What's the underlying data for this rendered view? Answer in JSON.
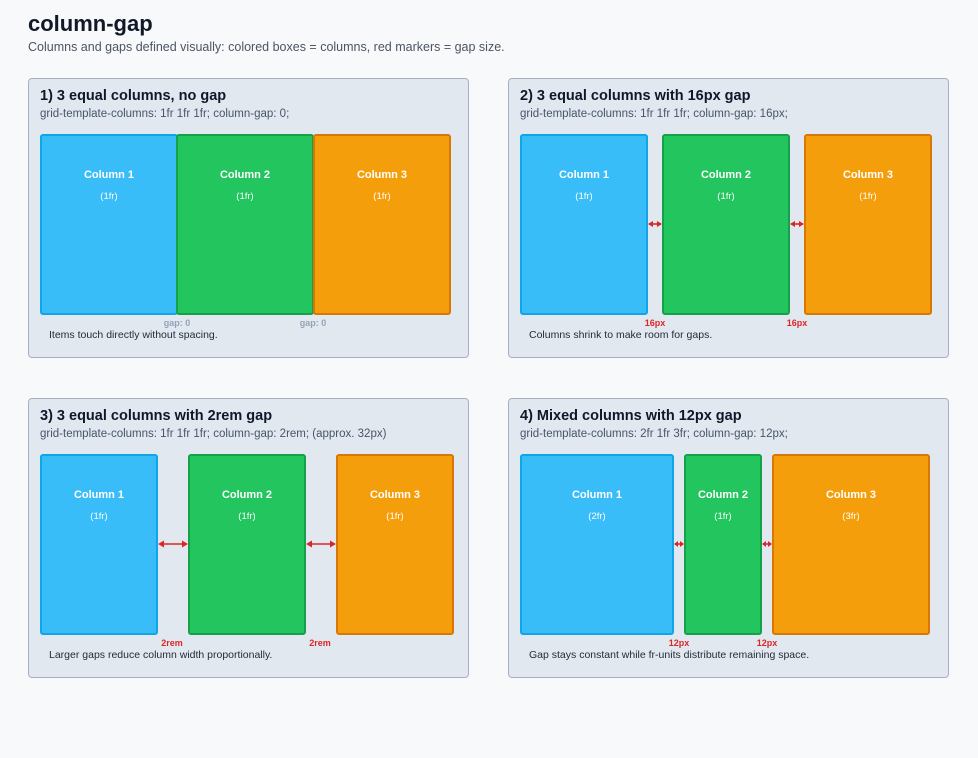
{
  "page": {
    "title": "column-gap",
    "subtitle": "Columns and gaps defined visually: colored boxes = columns, red markers = gap size."
  },
  "colors": {
    "column_blue": "#38bdf8",
    "column_green": "#22c55e",
    "column_orange": "#f59e0b",
    "gap_marker_red": "#dc2626"
  },
  "cards": [
    {
      "title": "1) 3 equal columns, no gap",
      "code": "grid-template-columns: 1fr 1fr 1fr; column-gap: 0;",
      "columns": [
        {
          "name": "Column 1",
          "fr": "(1fr)"
        },
        {
          "name": "Column 2",
          "fr": "(1fr)"
        },
        {
          "name": "Column 3",
          "fr": "(1fr)"
        }
      ],
      "gap_labels": [
        "gap: 0",
        "gap: 0"
      ],
      "note": "Items touch directly without spacing."
    },
    {
      "title": "2) 3 equal columns with 16px gap",
      "code": "grid-template-columns: 1fr 1fr 1fr; column-gap: 16px;",
      "columns": [
        {
          "name": "Column 1",
          "fr": "(1fr)"
        },
        {
          "name": "Column 2",
          "fr": "(1fr)"
        },
        {
          "name": "Column 3",
          "fr": "(1fr)"
        }
      ],
      "gap_labels": [
        "16px",
        "16px"
      ],
      "note": "Columns shrink to make room for gaps."
    },
    {
      "title": "3) 3 equal columns with 2rem gap",
      "code": "grid-template-columns: 1fr 1fr 1fr; column-gap: 2rem; (approx. 32px)",
      "columns": [
        {
          "name": "Column 1",
          "fr": "(1fr)"
        },
        {
          "name": "Column 2",
          "fr": "(1fr)"
        },
        {
          "name": "Column 3",
          "fr": "(1fr)"
        }
      ],
      "gap_labels": [
        "2rem",
        "2rem"
      ],
      "note": "Larger gaps reduce column width proportionally."
    },
    {
      "title": "4) Mixed columns with 12px gap",
      "code": "grid-template-columns: 2fr 1fr 3fr; column-gap: 12px;",
      "columns": [
        {
          "name": "Column 1",
          "fr": "(2fr)"
        },
        {
          "name": "Column 2",
          "fr": "(1fr)"
        },
        {
          "name": "Column 3",
          "fr": "(3fr)"
        }
      ],
      "gap_labels": [
        "12px",
        "12px"
      ],
      "note": "Gap stays constant while fr-units distribute remaining space."
    }
  ]
}
